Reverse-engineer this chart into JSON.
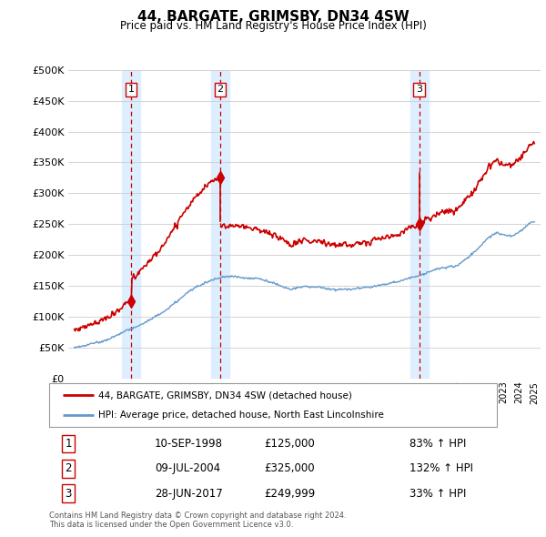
{
  "title": "44, BARGATE, GRIMSBY, DN34 4SW",
  "subtitle": "Price paid vs. HM Land Registry's House Price Index (HPI)",
  "transactions": [
    {
      "num": 1,
      "date_label": "10-SEP-1998",
      "price": 125000,
      "pct": "83%",
      "year_float": 1998.69
    },
    {
      "num": 2,
      "date_label": "09-JUL-2004",
      "price": 325000,
      "pct": "132%",
      "year_float": 2004.52
    },
    {
      "num": 3,
      "date_label": "28-JUN-2017",
      "price": 249999,
      "pct": "33%",
      "year_float": 2017.49
    }
  ],
  "legend_line1": "44, BARGATE, GRIMSBY, DN34 4SW (detached house)",
  "legend_line2": "HPI: Average price, detached house, North East Lincolnshire",
  "footnote1": "Contains HM Land Registry data © Crown copyright and database right 2024.",
  "footnote2": "This data is licensed under the Open Government Licence v3.0.",
  "hpi_color": "#6699cc",
  "price_color": "#cc0000",
  "vline_color": "#cc0000",
  "shade_color": "#ddeeff",
  "ylim": [
    0,
    500000
  ],
  "yticks": [
    0,
    50000,
    100000,
    150000,
    200000,
    250000,
    300000,
    350000,
    400000,
    450000,
    500000
  ],
  "xlim_start": 1994.6,
  "xlim_end": 2025.4,
  "hpi_keypoints": [
    [
      1995.0,
      50000
    ],
    [
      1996.0,
      55000
    ],
    [
      1997.0,
      62000
    ],
    [
      1998.0,
      72000
    ],
    [
      1999.0,
      82000
    ],
    [
      2000.0,
      95000
    ],
    [
      2001.0,
      110000
    ],
    [
      2002.0,
      130000
    ],
    [
      2003.0,
      148000
    ],
    [
      2004.0,
      158000
    ],
    [
      2004.5,
      162000
    ],
    [
      2005.0,
      165000
    ],
    [
      2006.0,
      162000
    ],
    [
      2007.0,
      162000
    ],
    [
      2007.5,
      158000
    ],
    [
      2008.0,
      155000
    ],
    [
      2008.5,
      148000
    ],
    [
      2009.0,
      145000
    ],
    [
      2009.5,
      148000
    ],
    [
      2010.0,
      150000
    ],
    [
      2011.0,
      148000
    ],
    [
      2012.0,
      145000
    ],
    [
      2013.0,
      147000
    ],
    [
      2014.0,
      150000
    ],
    [
      2015.0,
      155000
    ],
    [
      2016.0,
      160000
    ],
    [
      2017.0,
      168000
    ],
    [
      2017.5,
      170000
    ],
    [
      2018.0,
      175000
    ],
    [
      2019.0,
      182000
    ],
    [
      2020.0,
      185000
    ],
    [
      2021.0,
      205000
    ],
    [
      2022.0,
      230000
    ],
    [
      2022.5,
      238000
    ],
    [
      2023.0,
      235000
    ],
    [
      2023.5,
      232000
    ],
    [
      2024.0,
      238000
    ],
    [
      2024.5,
      248000
    ],
    [
      2025.0,
      255000
    ]
  ]
}
